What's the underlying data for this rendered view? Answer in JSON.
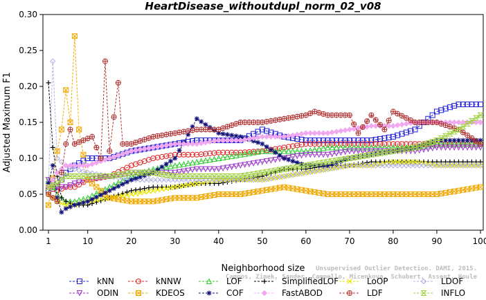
{
  "chart_data": {
    "type": "line",
    "title": "HeartDisease_withoutdupl_norm_02_v08",
    "xlabel": "Neighborhood size",
    "ylabel": "Adjusted Maximum F1",
    "xlim": [
      0,
      100
    ],
    "ylim": [
      0,
      0.3
    ],
    "x_ticks": [
      1,
      10,
      20,
      30,
      40,
      50,
      60,
      70,
      80,
      90,
      100
    ],
    "x_tick_labels": [
      "1",
      "10",
      "20",
      "30",
      "40",
      "50",
      "60",
      "70",
      "80",
      "90",
      "100"
    ],
    "y_ticks": [
      0,
      0.05,
      0.1,
      0.15,
      0.2,
      0.25,
      0.3
    ],
    "y_tick_labels": [
      "0.00",
      "0.05",
      "0.10",
      "0.15",
      "0.20",
      "0.25",
      "0.30"
    ],
    "grid": false,
    "legend_position": "bottom",
    "watermark": [
      "Unsupervised Outlier Detection. DAMI, 2015.",
      "Campos, Zimek, Sander, Campello, Micenkova, Schubert, Assent, Houle"
    ],
    "series": [
      {
        "name": "kNN",
        "color": "#1f1fd6",
        "marker": "square",
        "points": [
          [
            1,
            0.055
          ],
          [
            3,
            0.06
          ],
          [
            5,
            0.08
          ],
          [
            7,
            0.09
          ],
          [
            10,
            0.1
          ],
          [
            15,
            0.1
          ],
          [
            20,
            0.11
          ],
          [
            25,
            0.115
          ],
          [
            30,
            0.12
          ],
          [
            35,
            0.125
          ],
          [
            40,
            0.125
          ],
          [
            45,
            0.125
          ],
          [
            50,
            0.14
          ],
          [
            55,
            0.13
          ],
          [
            60,
            0.125
          ],
          [
            65,
            0.125
          ],
          [
            70,
            0.125
          ],
          [
            75,
            0.125
          ],
          [
            80,
            0.13
          ],
          [
            85,
            0.14
          ],
          [
            90,
            0.165
          ],
          [
            95,
            0.175
          ],
          [
            100,
            0.175
          ]
        ]
      },
      {
        "name": "kNNW",
        "color": "#e02020",
        "marker": "circle",
        "points": [
          [
            1,
            0.06
          ],
          [
            3,
            0.055
          ],
          [
            5,
            0.06
          ],
          [
            7,
            0.06
          ],
          [
            10,
            0.07
          ],
          [
            15,
            0.075
          ],
          [
            20,
            0.09
          ],
          [
            25,
            0.1
          ],
          [
            30,
            0.105
          ],
          [
            35,
            0.105
          ],
          [
            40,
            0.108
          ],
          [
            45,
            0.108
          ],
          [
            50,
            0.11
          ],
          [
            55,
            0.115
          ],
          [
            60,
            0.12
          ],
          [
            65,
            0.12
          ],
          [
            70,
            0.12
          ],
          [
            75,
            0.12
          ],
          [
            80,
            0.12
          ],
          [
            85,
            0.12
          ],
          [
            90,
            0.12
          ],
          [
            95,
            0.12
          ],
          [
            100,
            0.12
          ]
        ]
      },
      {
        "name": "LOF",
        "color": "#2ecc2e",
        "marker": "triangle-up",
        "points": [
          [
            1,
            0.07
          ],
          [
            3,
            0.05
          ],
          [
            5,
            0.04
          ],
          [
            7,
            0.04
          ],
          [
            10,
            0.045
          ],
          [
            15,
            0.06
          ],
          [
            20,
            0.075
          ],
          [
            25,
            0.085
          ],
          [
            30,
            0.09
          ],
          [
            35,
            0.095
          ],
          [
            40,
            0.1
          ],
          [
            45,
            0.105
          ],
          [
            50,
            0.11
          ],
          [
            55,
            0.11
          ],
          [
            60,
            0.11
          ],
          [
            65,
            0.115
          ],
          [
            70,
            0.115
          ],
          [
            75,
            0.115
          ],
          [
            80,
            0.115
          ],
          [
            85,
            0.115
          ],
          [
            90,
            0.12
          ],
          [
            95,
            0.12
          ],
          [
            100,
            0.12
          ]
        ]
      },
      {
        "name": "SimplifiedLOF",
        "color": "#000000",
        "marker": "plus",
        "points": [
          [
            1,
            0.205
          ],
          [
            2,
            0.115
          ],
          [
            3,
            0.075
          ],
          [
            4,
            0.045
          ],
          [
            5,
            0.04
          ],
          [
            7,
            0.035
          ],
          [
            10,
            0.035
          ],
          [
            15,
            0.045
          ],
          [
            20,
            0.055
          ],
          [
            25,
            0.06
          ],
          [
            30,
            0.06
          ],
          [
            35,
            0.065
          ],
          [
            40,
            0.065
          ],
          [
            45,
            0.07
          ],
          [
            50,
            0.075
          ],
          [
            55,
            0.085
          ],
          [
            60,
            0.085
          ],
          [
            65,
            0.09
          ],
          [
            70,
            0.09
          ],
          [
            75,
            0.095
          ],
          [
            80,
            0.095
          ],
          [
            85,
            0.095
          ],
          [
            90,
            0.095
          ],
          [
            95,
            0.095
          ],
          [
            100,
            0.095
          ]
        ]
      },
      {
        "name": "LoOP",
        "color": "#e6e600",
        "marker": "cross",
        "points": [
          [
            1,
            0.05
          ],
          [
            3,
            0.04
          ],
          [
            5,
            0.035
          ],
          [
            7,
            0.035
          ],
          [
            10,
            0.04
          ],
          [
            15,
            0.045
          ],
          [
            20,
            0.05
          ],
          [
            25,
            0.055
          ],
          [
            30,
            0.06
          ],
          [
            35,
            0.065
          ],
          [
            40,
            0.07
          ],
          [
            45,
            0.07
          ],
          [
            50,
            0.07
          ],
          [
            55,
            0.075
          ],
          [
            60,
            0.08
          ],
          [
            65,
            0.085
          ],
          [
            70,
            0.09
          ],
          [
            75,
            0.09
          ],
          [
            80,
            0.095
          ],
          [
            85,
            0.095
          ],
          [
            90,
            0.09
          ],
          [
            95,
            0.09
          ],
          [
            100,
            0.09
          ]
        ]
      },
      {
        "name": "LDOF",
        "color": "#b0b0e0",
        "marker": "diamond",
        "points": [
          [
            1,
            0.065
          ],
          [
            2,
            0.235
          ],
          [
            3,
            0.1
          ],
          [
            5,
            0.09
          ],
          [
            7,
            0.085
          ],
          [
            10,
            0.08
          ],
          [
            15,
            0.075
          ],
          [
            20,
            0.07
          ],
          [
            25,
            0.07
          ],
          [
            30,
            0.07
          ],
          [
            35,
            0.07
          ],
          [
            40,
            0.07
          ],
          [
            45,
            0.07
          ],
          [
            50,
            0.07
          ],
          [
            55,
            0.075
          ],
          [
            60,
            0.08
          ],
          [
            65,
            0.085
          ],
          [
            70,
            0.09
          ],
          [
            75,
            0.09
          ],
          [
            80,
            0.09
          ],
          [
            85,
            0.09
          ],
          [
            90,
            0.09
          ],
          [
            95,
            0.09
          ],
          [
            100,
            0.09
          ]
        ]
      },
      {
        "name": "ODIN",
        "color": "#9a33cc",
        "marker": "triangle-down",
        "points": [
          [
            1,
            0.07
          ],
          [
            3,
            0.06
          ],
          [
            5,
            0.06
          ],
          [
            7,
            0.065
          ],
          [
            10,
            0.07
          ],
          [
            15,
            0.075
          ],
          [
            20,
            0.08
          ],
          [
            25,
            0.08
          ],
          [
            30,
            0.08
          ],
          [
            35,
            0.085
          ],
          [
            40,
            0.085
          ],
          [
            45,
            0.09
          ],
          [
            50,
            0.095
          ],
          [
            55,
            0.1
          ],
          [
            60,
            0.105
          ],
          [
            65,
            0.105
          ],
          [
            70,
            0.11
          ],
          [
            75,
            0.11
          ],
          [
            80,
            0.11
          ],
          [
            85,
            0.11
          ],
          [
            90,
            0.115
          ],
          [
            95,
            0.115
          ],
          [
            100,
            0.115
          ]
        ]
      },
      {
        "name": "KDEOS",
        "color": "#f0a800",
        "marker": "square-x",
        "points": [
          [
            1,
            0.035
          ],
          [
            3,
            0.11
          ],
          [
            4,
            0.14
          ],
          [
            5,
            0.195
          ],
          [
            6,
            0.15
          ],
          [
            7,
            0.27
          ],
          [
            8,
            0.14
          ],
          [
            10,
            0.07
          ],
          [
            15,
            0.045
          ],
          [
            20,
            0.04
          ],
          [
            25,
            0.04
          ],
          [
            30,
            0.045
          ],
          [
            35,
            0.045
          ],
          [
            40,
            0.05
          ],
          [
            45,
            0.05
          ],
          [
            50,
            0.055
          ],
          [
            55,
            0.06
          ],
          [
            60,
            0.055
          ],
          [
            65,
            0.05
          ],
          [
            70,
            0.05
          ],
          [
            75,
            0.05
          ],
          [
            80,
            0.05
          ],
          [
            85,
            0.05
          ],
          [
            90,
            0.05
          ],
          [
            95,
            0.055
          ],
          [
            100,
            0.06
          ]
        ]
      },
      {
        "name": "COF",
        "color": "#10107a",
        "marker": "star",
        "points": [
          [
            1,
            0.065
          ],
          [
            2,
            0.09
          ],
          [
            3,
            0.045
          ],
          [
            4,
            0.025
          ],
          [
            5,
            0.03
          ],
          [
            7,
            0.035
          ],
          [
            10,
            0.04
          ],
          [
            15,
            0.055
          ],
          [
            20,
            0.07
          ],
          [
            25,
            0.08
          ],
          [
            30,
            0.1
          ],
          [
            35,
            0.155
          ],
          [
            40,
            0.135
          ],
          [
            45,
            0.13
          ],
          [
            50,
            0.12
          ],
          [
            55,
            0.1
          ],
          [
            60,
            0.09
          ],
          [
            65,
            0.09
          ],
          [
            70,
            0.1
          ],
          [
            75,
            0.105
          ],
          [
            80,
            0.11
          ],
          [
            85,
            0.115
          ],
          [
            90,
            0.125
          ],
          [
            95,
            0.125
          ],
          [
            100,
            0.125
          ]
        ]
      },
      {
        "name": "FastABOD",
        "color": "#f0a8f0",
        "marker": "diamond-filled",
        "points": [
          [
            1,
            0.06
          ],
          [
            3,
            0.08
          ],
          [
            5,
            0.09
          ],
          [
            7,
            0.09
          ],
          [
            10,
            0.09
          ],
          [
            15,
            0.1
          ],
          [
            20,
            0.11
          ],
          [
            25,
            0.115
          ],
          [
            30,
            0.12
          ],
          [
            35,
            0.12
          ],
          [
            40,
            0.125
          ],
          [
            45,
            0.125
          ],
          [
            50,
            0.13
          ],
          [
            55,
            0.13
          ],
          [
            60,
            0.135
          ],
          [
            65,
            0.135
          ],
          [
            70,
            0.14
          ],
          [
            75,
            0.145
          ],
          [
            80,
            0.145
          ],
          [
            85,
            0.15
          ],
          [
            90,
            0.15
          ],
          [
            95,
            0.15
          ],
          [
            100,
            0.15
          ]
        ]
      },
      {
        "name": "LDF",
        "color": "#b03030",
        "marker": "circle-plus",
        "points": [
          [
            1,
            0.05
          ],
          [
            3,
            0.04
          ],
          [
            5,
            0.12
          ],
          [
            6,
            0.14
          ],
          [
            7,
            0.12
          ],
          [
            9,
            0.125
          ],
          [
            11,
            0.13
          ],
          [
            13,
            0.1
          ],
          [
            14,
            0.235
          ],
          [
            15,
            0.11
          ],
          [
            17,
            0.205
          ],
          [
            18,
            0.12
          ],
          [
            20,
            0.12
          ],
          [
            25,
            0.13
          ],
          [
            30,
            0.135
          ],
          [
            35,
            0.14
          ],
          [
            40,
            0.14
          ],
          [
            45,
            0.15
          ],
          [
            50,
            0.15
          ],
          [
            55,
            0.155
          ],
          [
            60,
            0.16
          ],
          [
            62,
            0.165
          ],
          [
            65,
            0.16
          ],
          [
            70,
            0.16
          ],
          [
            72,
            0.135
          ],
          [
            75,
            0.16
          ],
          [
            78,
            0.14
          ],
          [
            80,
            0.165
          ],
          [
            85,
            0.15
          ],
          [
            90,
            0.15
          ],
          [
            95,
            0.14
          ],
          [
            100,
            0.12
          ]
        ]
      },
      {
        "name": "INFLO",
        "color": "#a0d040",
        "marker": "hourglass",
        "points": [
          [
            1,
            0.06
          ],
          [
            3,
            0.065
          ],
          [
            5,
            0.075
          ],
          [
            7,
            0.075
          ],
          [
            10,
            0.075
          ],
          [
            15,
            0.075
          ],
          [
            20,
            0.08
          ],
          [
            25,
            0.08
          ],
          [
            30,
            0.075
          ],
          [
            35,
            0.075
          ],
          [
            40,
            0.075
          ],
          [
            45,
            0.075
          ],
          [
            50,
            0.08
          ],
          [
            55,
            0.085
          ],
          [
            60,
            0.09
          ],
          [
            65,
            0.095
          ],
          [
            70,
            0.1
          ],
          [
            75,
            0.105
          ],
          [
            80,
            0.11
          ],
          [
            85,
            0.115
          ],
          [
            90,
            0.125
          ],
          [
            95,
            0.14
          ],
          [
            100,
            0.16
          ]
        ]
      }
    ]
  }
}
